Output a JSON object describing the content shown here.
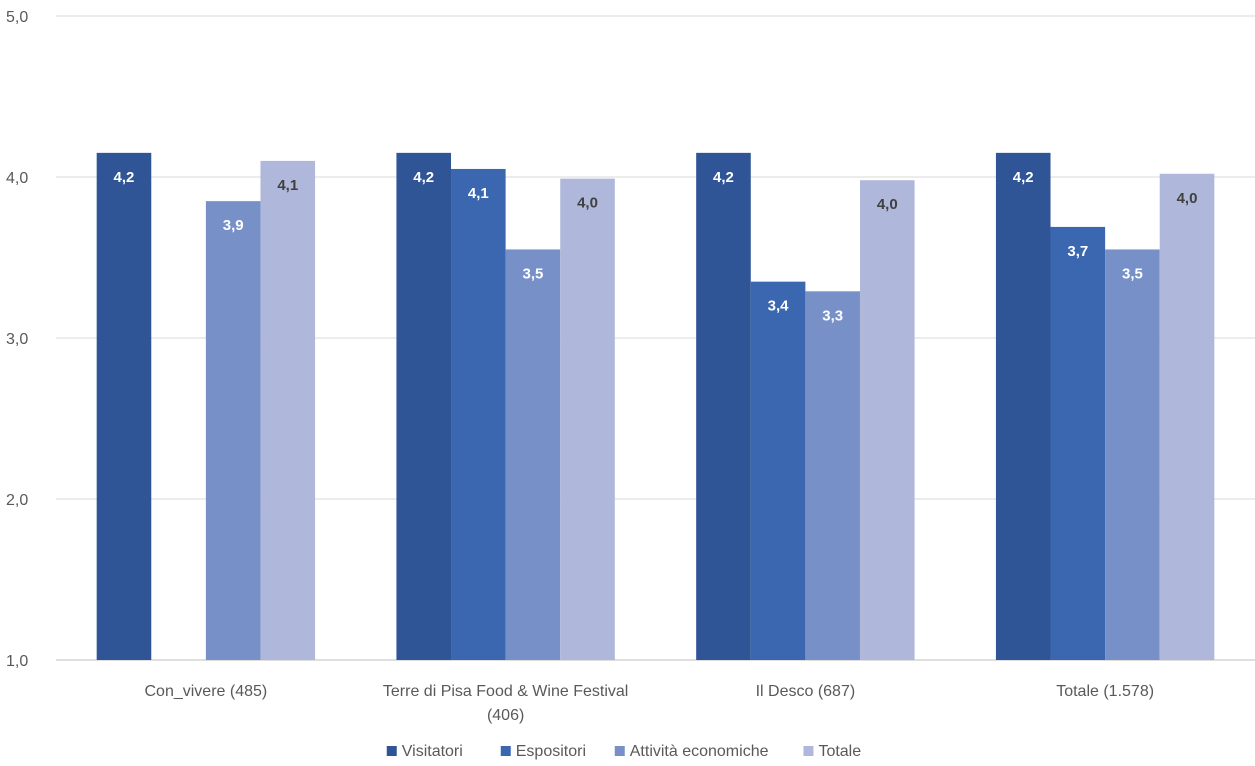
{
  "chart_data": {
    "type": "bar",
    "categories": [
      [
        "Con_vivere (485)"
      ],
      [
        "Terre di Pisa Food & Wine Festival",
        "(406)"
      ],
      [
        "Il Desco (687)"
      ],
      [
        "Totale (1.578)"
      ]
    ],
    "series": [
      {
        "name": "Visitatori",
        "color": "#2F5597",
        "values": [
          4.15,
          4.15,
          4.15,
          4.15
        ],
        "labels": [
          "4,2",
          "4,2",
          "4,2",
          "4,2"
        ]
      },
      {
        "name": "Espositori",
        "color": "#3A67B0",
        "values": [
          null,
          4.05,
          3.35,
          3.69
        ],
        "labels": [
          "",
          "4,1",
          "3,4",
          "3,7"
        ]
      },
      {
        "name": "Attività economiche",
        "color": "#7790C8",
        "values": [
          3.85,
          3.55,
          3.29,
          3.55
        ],
        "labels": [
          "3,9",
          "3,5",
          "3,3",
          "3,5"
        ]
      },
      {
        "name": "Totale",
        "color": "#AFB8DA",
        "values": [
          4.1,
          3.99,
          3.98,
          4.02
        ],
        "labels": [
          "4,1",
          "4,0",
          "4,0",
          "4,0"
        ]
      }
    ],
    "ylim": [
      1,
      5
    ],
    "yticks": [
      "1,0",
      "2,0",
      "3,0",
      "4,0",
      "5,0"
    ],
    "grid": true,
    "legend": "bottom-center",
    "title": "",
    "xlabel": "",
    "ylabel": ""
  }
}
